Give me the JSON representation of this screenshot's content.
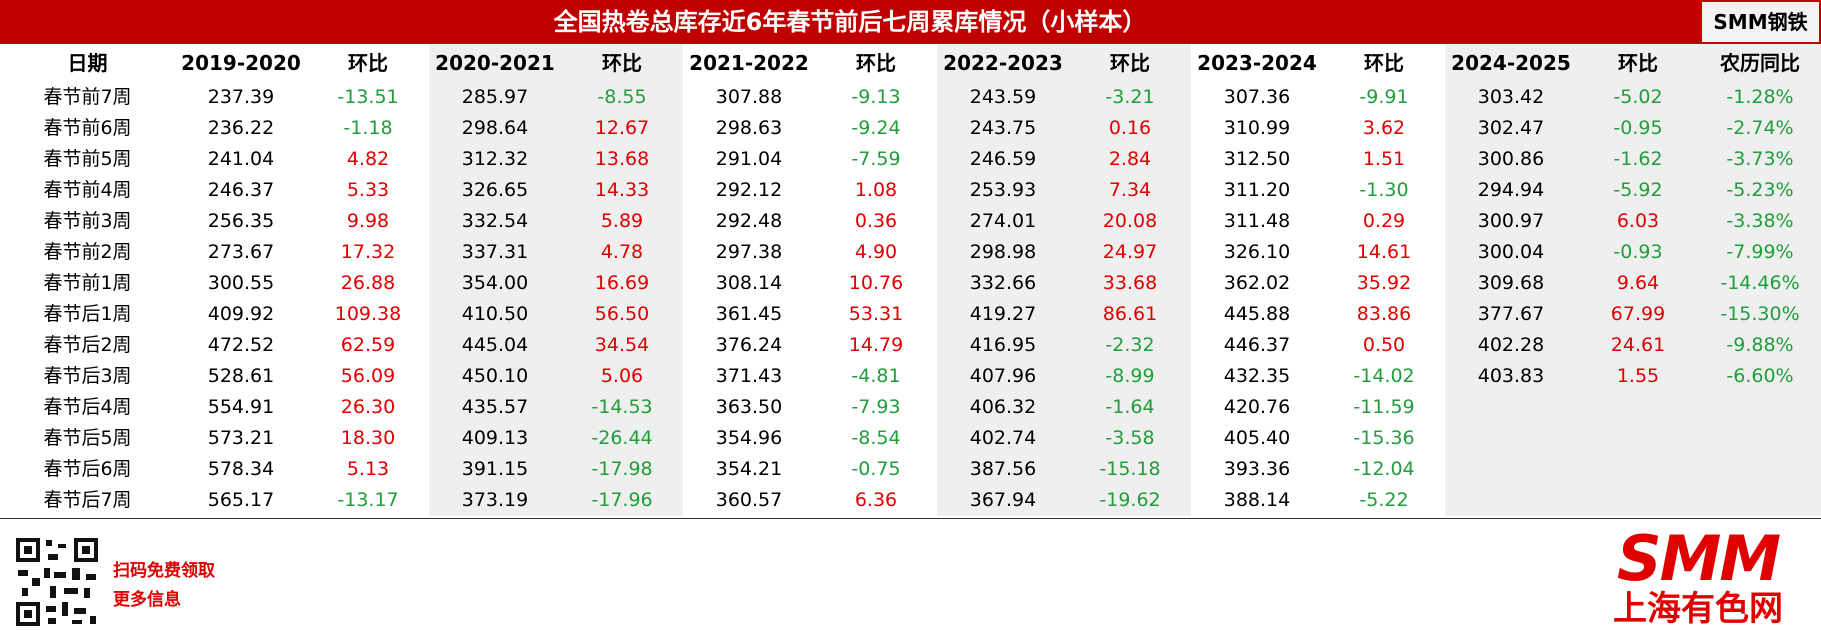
{
  "header": {
    "title": "全国热卷总库存近6年春节前后七周累库情况（小样本）",
    "badge": "SMM钢铁"
  },
  "table": {
    "columns": [
      "日期",
      "2019-2020",
      "环比",
      "2020-2021",
      "环比",
      "2021-2022",
      "环比",
      "2022-2023",
      "环比",
      "2023-2024",
      "环比",
      "2024-2025",
      "环比",
      "农历同比"
    ],
    "rows": [
      {
        "label": "春节前7周",
        "cells": [
          "237.39",
          "-13.51",
          "285.97",
          "-8.55",
          "307.88",
          "-9.13",
          "243.59",
          "-3.21",
          "307.36",
          "-9.91",
          "303.42",
          "-5.02",
          "-1.28%"
        ]
      },
      {
        "label": "春节前6周",
        "cells": [
          "236.22",
          "-1.18",
          "298.64",
          "12.67",
          "298.63",
          "-9.24",
          "243.75",
          "0.16",
          "310.99",
          "3.62",
          "302.47",
          "-0.95",
          "-2.74%"
        ]
      },
      {
        "label": "春节前5周",
        "cells": [
          "241.04",
          "4.82",
          "312.32",
          "13.68",
          "291.04",
          "-7.59",
          "246.59",
          "2.84",
          "312.50",
          "1.51",
          "300.86",
          "-1.62",
          "-3.73%"
        ]
      },
      {
        "label": "春节前4周",
        "cells": [
          "246.37",
          "5.33",
          "326.65",
          "14.33",
          "292.12",
          "1.08",
          "253.93",
          "7.34",
          "311.20",
          "-1.30",
          "294.94",
          "-5.92",
          "-5.23%"
        ]
      },
      {
        "label": "春节前3周",
        "cells": [
          "256.35",
          "9.98",
          "332.54",
          "5.89",
          "292.48",
          "0.36",
          "274.01",
          "20.08",
          "311.48",
          "0.29",
          "300.97",
          "6.03",
          "-3.38%"
        ]
      },
      {
        "label": "春节前2周",
        "cells": [
          "273.67",
          "17.32",
          "337.31",
          "4.78",
          "297.38",
          "4.90",
          "298.98",
          "24.97",
          "326.10",
          "14.61",
          "300.04",
          "-0.93",
          "-7.99%"
        ]
      },
      {
        "label": "春节前1周",
        "cells": [
          "300.55",
          "26.88",
          "354.00",
          "16.69",
          "308.14",
          "10.76",
          "332.66",
          "33.68",
          "362.02",
          "35.92",
          "309.68",
          "9.64",
          "-14.46%"
        ]
      },
      {
        "label": "春节后1周",
        "cells": [
          "409.92",
          "109.38",
          "410.50",
          "56.50",
          "361.45",
          "53.31",
          "419.27",
          "86.61",
          "445.88",
          "83.86",
          "377.67",
          "67.99",
          "-15.30%"
        ]
      },
      {
        "label": "春节后2周",
        "cells": [
          "472.52",
          "62.59",
          "445.04",
          "34.54",
          "376.24",
          "14.79",
          "416.95",
          "-2.32",
          "446.37",
          "0.50",
          "402.28",
          "24.61",
          "-9.88%"
        ]
      },
      {
        "label": "春节后3周",
        "cells": [
          "528.61",
          "56.09",
          "450.10",
          "5.06",
          "371.43",
          "-4.81",
          "407.96",
          "-8.99",
          "432.35",
          "-14.02",
          "403.83",
          "1.55",
          "-6.60%"
        ]
      },
      {
        "label": "春节后4周",
        "cells": [
          "554.91",
          "26.30",
          "435.57",
          "-14.53",
          "363.50",
          "-7.93",
          "406.32",
          "-1.64",
          "420.76",
          "-11.59",
          null,
          null,
          null
        ]
      },
      {
        "label": "春节后5周",
        "cells": [
          "573.21",
          "18.30",
          "409.13",
          "-26.44",
          "354.96",
          "-8.54",
          "402.74",
          "-3.58",
          "405.40",
          "-15.36",
          null,
          null,
          null
        ]
      },
      {
        "label": "春节后6周",
        "cells": [
          "578.34",
          "5.13",
          "391.15",
          "-17.98",
          "354.21",
          "-0.75",
          "387.56",
          "-15.18",
          "393.36",
          "-12.04",
          null,
          null,
          null
        ]
      },
      {
        "label": "春节后7周",
        "cells": [
          "565.17",
          "-13.17",
          "373.19",
          "-17.96",
          "360.57",
          "6.36",
          "367.94",
          "-19.62",
          "388.14",
          "-5.22",
          null,
          null,
          null
        ]
      }
    ]
  },
  "footer": {
    "lines": [
      "扫码免费领取",
      "更多信息"
    ],
    "logo": {
      "mark": "SMM",
      "name": "上海有色网"
    }
  }
}
